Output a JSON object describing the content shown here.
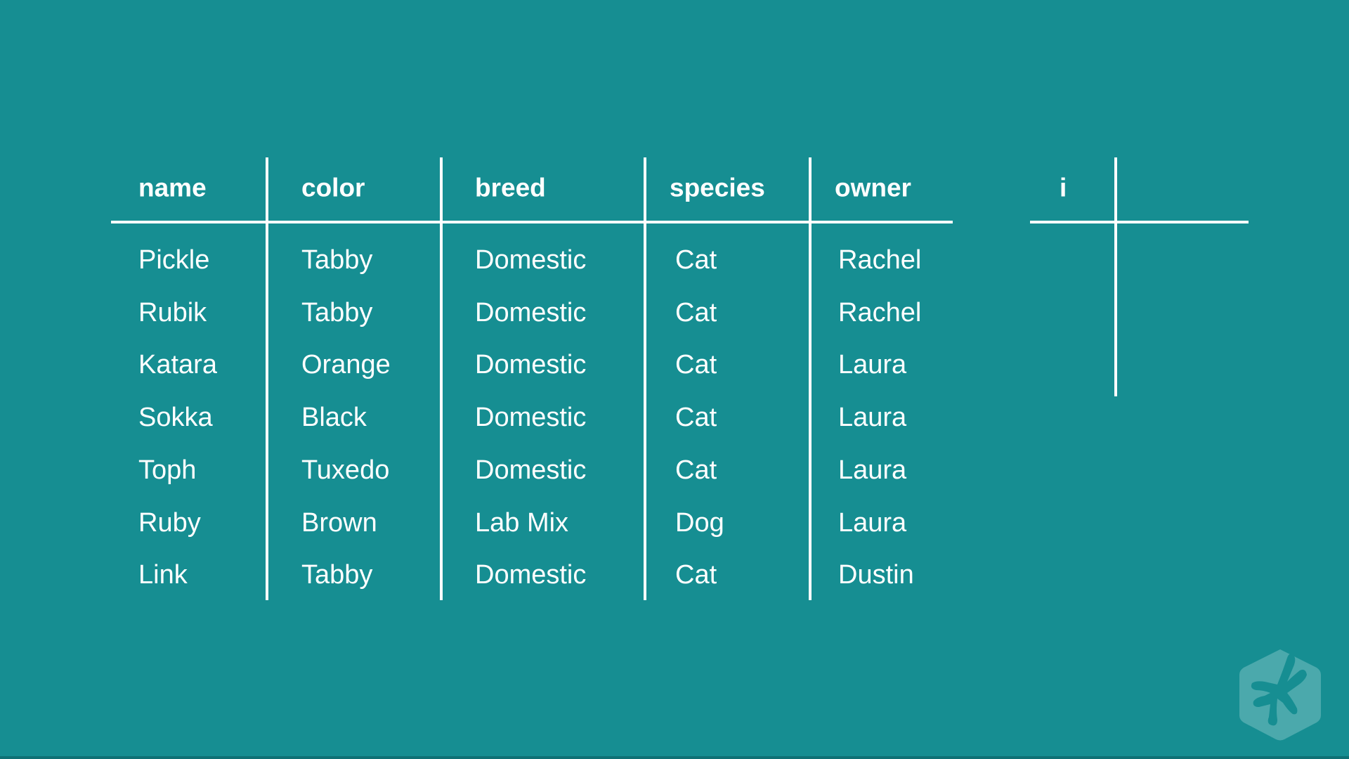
{
  "table": {
    "headers": [
      "name",
      "color",
      "breed",
      "species",
      "owner"
    ],
    "rows": [
      [
        "Pickle",
        "Tabby",
        "Domestic",
        "Cat",
        "Rachel"
      ],
      [
        "Rubik",
        "Tabby",
        "Domestic",
        "Cat",
        "Rachel"
      ],
      [
        "Katara",
        "Orange",
        "Domestic",
        "Cat",
        "Laura"
      ],
      [
        "Sokka",
        "Black",
        "Domestic",
        "Cat",
        "Laura"
      ],
      [
        "Toph",
        "Tuxedo",
        "Domestic",
        "Cat",
        "Laura"
      ],
      [
        "Ruby",
        "Brown",
        "Lab Mix",
        "Dog",
        "Laura"
      ],
      [
        "Link",
        "Tabby",
        "Domestic",
        "Cat",
        "Dustin"
      ]
    ]
  },
  "index_table": {
    "header": "i"
  },
  "colors": {
    "background": "#168e92",
    "text": "#ffffff",
    "logo": "#4ba9ac"
  },
  "logo": {
    "icon": "treehouse-frog-hand-icon"
  }
}
